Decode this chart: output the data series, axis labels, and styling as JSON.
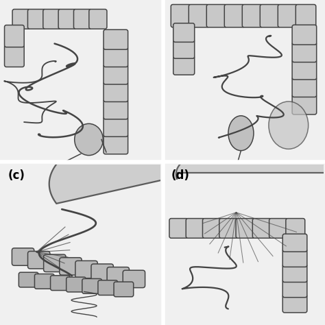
{
  "panel_labels_bottom": [
    "(c)",
    "(d)"
  ],
  "background_color": "#e8e8e8",
  "panel_bg_top": "#dcdcdc",
  "panel_bg_bottom": "#d4d4d4",
  "line_color": "#444444",
  "fig_bg": "#f0f0f0",
  "label_fontsize": 12,
  "label_fontweight": "bold",
  "haustra_color": "#b8b8b8",
  "colon_fill": "#c8c8c8",
  "small_bowel_color": "#aaaaaa"
}
